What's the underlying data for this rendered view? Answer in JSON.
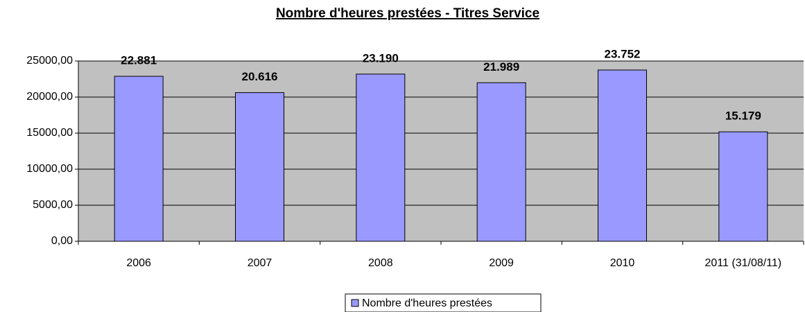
{
  "chart_data": {
    "type": "bar",
    "title": "Nombre d'heures prestées - Titres Service",
    "categories": [
      "2006",
      "2007",
      "2008",
      "2009",
      "2010",
      "2011 (31/08/11)"
    ],
    "series": [
      {
        "name": "Nombre d'heures prestées",
        "color": "#9999ff",
        "values": [
          22881,
          20616,
          23190,
          21989,
          23752,
          15179
        ],
        "value_labels": [
          "22.881",
          "20.616",
          "23.190",
          "21.989",
          "23.752",
          "15.179"
        ]
      }
    ],
    "ylim": [
      0,
      25000
    ],
    "yticks": [
      {
        "value": 0,
        "label": "0,00"
      },
      {
        "value": 5000,
        "label": "5000,00"
      },
      {
        "value": 10000,
        "label": "10000,00"
      },
      {
        "value": 15000,
        "label": "15000,00"
      },
      {
        "value": 20000,
        "label": "20000,00"
      },
      {
        "value": 25000,
        "label": "25000,00"
      }
    ],
    "grid": true,
    "legend": "bottom",
    "plot_background": "#c0c0c0"
  }
}
